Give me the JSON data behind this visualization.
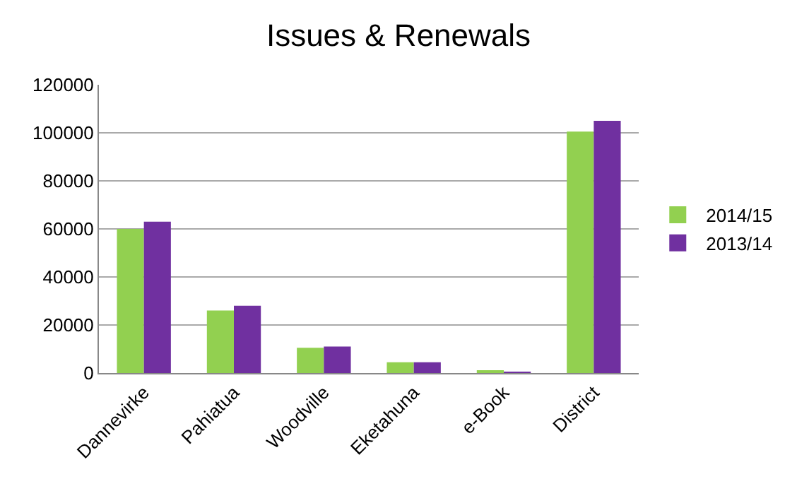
{
  "chart_data": {
    "type": "bar",
    "title": "Issues & Renewals",
    "categories": [
      "Dannevirke",
      "Pahiatua",
      "Woodville",
      "Eketahuna",
      "e-Book",
      "District"
    ],
    "series": [
      {
        "name": "2014/15",
        "color": "#92d050",
        "values": [
          60000,
          26000,
          10500,
          4500,
          1000,
          100500
        ]
      },
      {
        "name": "2013/14",
        "color": "#7030a0",
        "values": [
          63000,
          28000,
          11000,
          4500,
          500,
          105000
        ]
      }
    ],
    "ylim": [
      0,
      120000
    ],
    "yticks": [
      0,
      20000,
      40000,
      60000,
      80000,
      100000,
      120000
    ],
    "grid": "y",
    "legend": "right"
  }
}
